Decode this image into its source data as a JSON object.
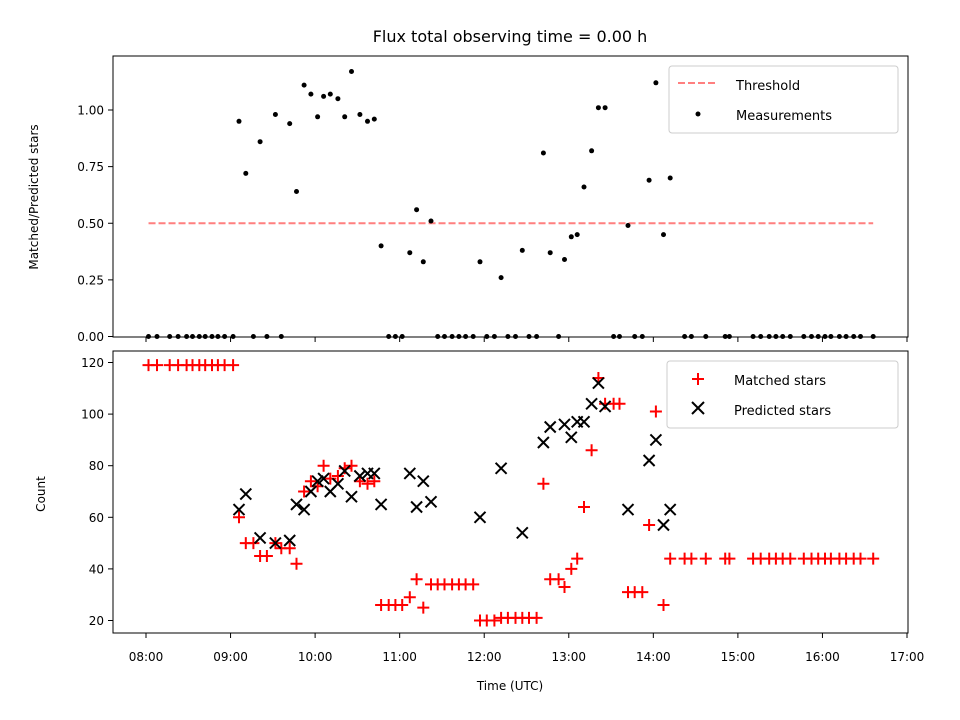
{
  "chart_data": [
    {
      "type": "scatter",
      "title": "Flux total observing time = 0.00 h",
      "xlabel": "",
      "ylabel": "Matched/Predicted stars",
      "xlim": [
        7.92,
        17.0
      ],
      "ylim": [
        0,
        1.24
      ],
      "yticks": [
        0.0,
        0.25,
        0.5,
        0.75,
        1.0
      ],
      "ytick_labels": [
        "0.00",
        "0.25",
        "0.50",
        "0.75",
        "1.00"
      ],
      "legend": {
        "position": "top-right",
        "entries": [
          {
            "label": "Threshold",
            "color": "#ff7f7f",
            "style": "dashed-line"
          },
          {
            "label": "Measurements",
            "color": "#000000",
            "style": "dot"
          }
        ]
      },
      "threshold": {
        "name": "Threshold",
        "y": 0.5,
        "x": [
          8.03,
          16.6
        ]
      },
      "series": [
        {
          "name": "Measurements",
          "color": "#000000",
          "x": [
            8.03,
            8.13,
            8.28,
            8.38,
            8.48,
            8.55,
            8.63,
            8.7,
            8.78,
            8.85,
            8.93,
            9.03,
            9.1,
            9.18,
            9.27,
            9.35,
            9.43,
            9.53,
            9.6,
            9.7,
            9.78,
            9.87,
            9.95,
            10.03,
            10.1,
            10.18,
            10.27,
            10.35,
            10.43,
            10.53,
            10.62,
            10.7,
            10.78,
            10.87,
            10.95,
            11.03,
            11.12,
            11.2,
            11.28,
            11.37,
            11.45,
            11.53,
            11.62,
            11.7,
            11.78,
            11.87,
            11.95,
            12.03,
            12.12,
            12.2,
            12.28,
            12.37,
            12.45,
            12.53,
            12.62,
            12.7,
            12.78,
            12.88,
            12.95,
            13.03,
            13.1,
            13.18,
            13.27,
            13.35,
            13.43,
            13.53,
            13.6,
            13.7,
            13.78,
            13.87,
            13.95,
            14.03,
            14.12,
            14.2,
            14.37,
            14.45,
            14.62,
            14.85,
            14.9,
            15.18,
            15.27,
            15.37,
            15.45,
            15.53,
            15.62,
            15.78,
            15.87,
            15.95,
            16.03,
            16.1,
            16.2,
            16.28,
            16.37,
            16.45,
            16.6
          ],
          "y": [
            0,
            0,
            0,
            0,
            0,
            0,
            0,
            0,
            0,
            0,
            0,
            0,
            0.95,
            0.72,
            0,
            0.86,
            0,
            0.98,
            0,
            0.94,
            0.64,
            1.11,
            1.07,
            0.97,
            1.06,
            1.07,
            1.05,
            0.97,
            1.17,
            0.98,
            0.95,
            0.96,
            0.4,
            0,
            0,
            0,
            0.37,
            0.56,
            0.33,
            0.51,
            0,
            0,
            0,
            0,
            0,
            0,
            0.33,
            0,
            0,
            0.26,
            0,
            0,
            0.38,
            0,
            0,
            0.81,
            0.37,
            0,
            0.34,
            0.44,
            0.45,
            0.66,
            0.82,
            1.01,
            1.01,
            0,
            0,
            0.49,
            0,
            0,
            0.69,
            1.12,
            0.45,
            0.7,
            0,
            0,
            0,
            0,
            0,
            0,
            0,
            0,
            0,
            0,
            0,
            0,
            0,
            0,
            0,
            0,
            0,
            0,
            0,
            0,
            0
          ]
        }
      ]
    },
    {
      "type": "scatter",
      "title": "",
      "xlabel": "Time (UTC)",
      "ylabel": "Count",
      "xlim": [
        7.6,
        17.0
      ],
      "ylim": [
        15,
        125
      ],
      "yticks": [
        20,
        40,
        60,
        80,
        100,
        120
      ],
      "ytick_labels": [
        "20",
        "40",
        "60",
        "80",
        "100",
        "120"
      ],
      "xticks": [
        8,
        9,
        10,
        11,
        12,
        13,
        14,
        15,
        16,
        17
      ],
      "xtick_labels": [
        "08:00",
        "09:00",
        "10:00",
        "11:00",
        "12:00",
        "13:00",
        "14:00",
        "15:00",
        "16:00",
        "17:00"
      ],
      "legend": {
        "position": "top-right",
        "entries": [
          {
            "label": "Matched stars",
            "color": "#ff0000",
            "style": "plus"
          },
          {
            "label": "Predicted stars",
            "color": "#000000",
            "style": "cross"
          }
        ]
      },
      "series": [
        {
          "name": "Matched stars",
          "color": "#ff0000",
          "marker": "plus",
          "x": [
            8.03,
            8.13,
            8.28,
            8.38,
            8.48,
            8.55,
            8.63,
            8.7,
            8.78,
            8.85,
            8.93,
            9.03,
            9.1,
            9.18,
            9.27,
            9.35,
            9.43,
            9.53,
            9.6,
            9.7,
            9.78,
            9.87,
            9.95,
            10.03,
            10.1,
            10.18,
            10.27,
            10.35,
            10.43,
            10.53,
            10.62,
            10.7,
            10.78,
            10.87,
            10.95,
            11.03,
            11.12,
            11.2,
            11.28,
            11.37,
            11.45,
            11.53,
            11.62,
            11.7,
            11.78,
            11.87,
            11.95,
            12.03,
            12.12,
            12.2,
            12.28,
            12.37,
            12.45,
            12.53,
            12.62,
            12.7,
            12.78,
            12.88,
            12.95,
            13.03,
            13.1,
            13.18,
            13.27,
            13.35,
            13.43,
            13.53,
            13.6,
            13.7,
            13.78,
            13.87,
            13.95,
            14.03,
            14.12,
            14.2,
            14.37,
            14.45,
            14.62,
            14.85,
            14.9,
            15.18,
            15.27,
            15.37,
            15.45,
            15.53,
            15.62,
            15.78,
            15.87,
            15.95,
            16.03,
            16.1,
            16.2,
            16.28,
            16.37,
            16.45,
            16.6
          ],
          "y": [
            119,
            119,
            119,
            119,
            119,
            119,
            119,
            119,
            119,
            119,
            119,
            119,
            60,
            50,
            50,
            45,
            45,
            50,
            48,
            48,
            42,
            70,
            74,
            72,
            80,
            75,
            76,
            79,
            80,
            74,
            73,
            74,
            26,
            26,
            26,
            26,
            29,
            36,
            25,
            34,
            34,
            34,
            34,
            34,
            34,
            34,
            20,
            20,
            20,
            21,
            21,
            21,
            21,
            21,
            21,
            73,
            36,
            36,
            33,
            40,
            44,
            64,
            86,
            114,
            104,
            104,
            104,
            31,
            31,
            31,
            57,
            101,
            26,
            44,
            44,
            44,
            44,
            44,
            44,
            44,
            44,
            44,
            44,
            44,
            44,
            44,
            44,
            44,
            44,
            44,
            44,
            44,
            44,
            44,
            44
          ]
        },
        {
          "name": "Predicted stars",
          "color": "#000000",
          "marker": "cross",
          "x": [
            9.1,
            9.18,
            9.35,
            9.53,
            9.7,
            9.78,
            9.87,
            9.95,
            10.03,
            10.1,
            10.18,
            10.27,
            10.35,
            10.43,
            10.53,
            10.62,
            10.7,
            10.78,
            11.12,
            11.2,
            11.28,
            11.37,
            11.95,
            12.2,
            12.45,
            12.7,
            12.78,
            12.95,
            13.03,
            13.1,
            13.18,
            13.27,
            13.35,
            13.43,
            13.7,
            13.95,
            14.03,
            14.12,
            14.2
          ],
          "y": [
            63,
            69,
            52,
            50,
            51,
            65,
            63,
            70,
            74,
            75,
            70,
            73,
            78,
            68,
            76,
            77,
            77,
            65,
            77,
            64,
            74,
            66,
            60,
            79,
            54,
            89,
            95,
            96,
            91,
            97,
            97,
            104,
            112,
            103,
            63,
            82,
            90,
            57,
            63
          ]
        }
      ]
    }
  ]
}
